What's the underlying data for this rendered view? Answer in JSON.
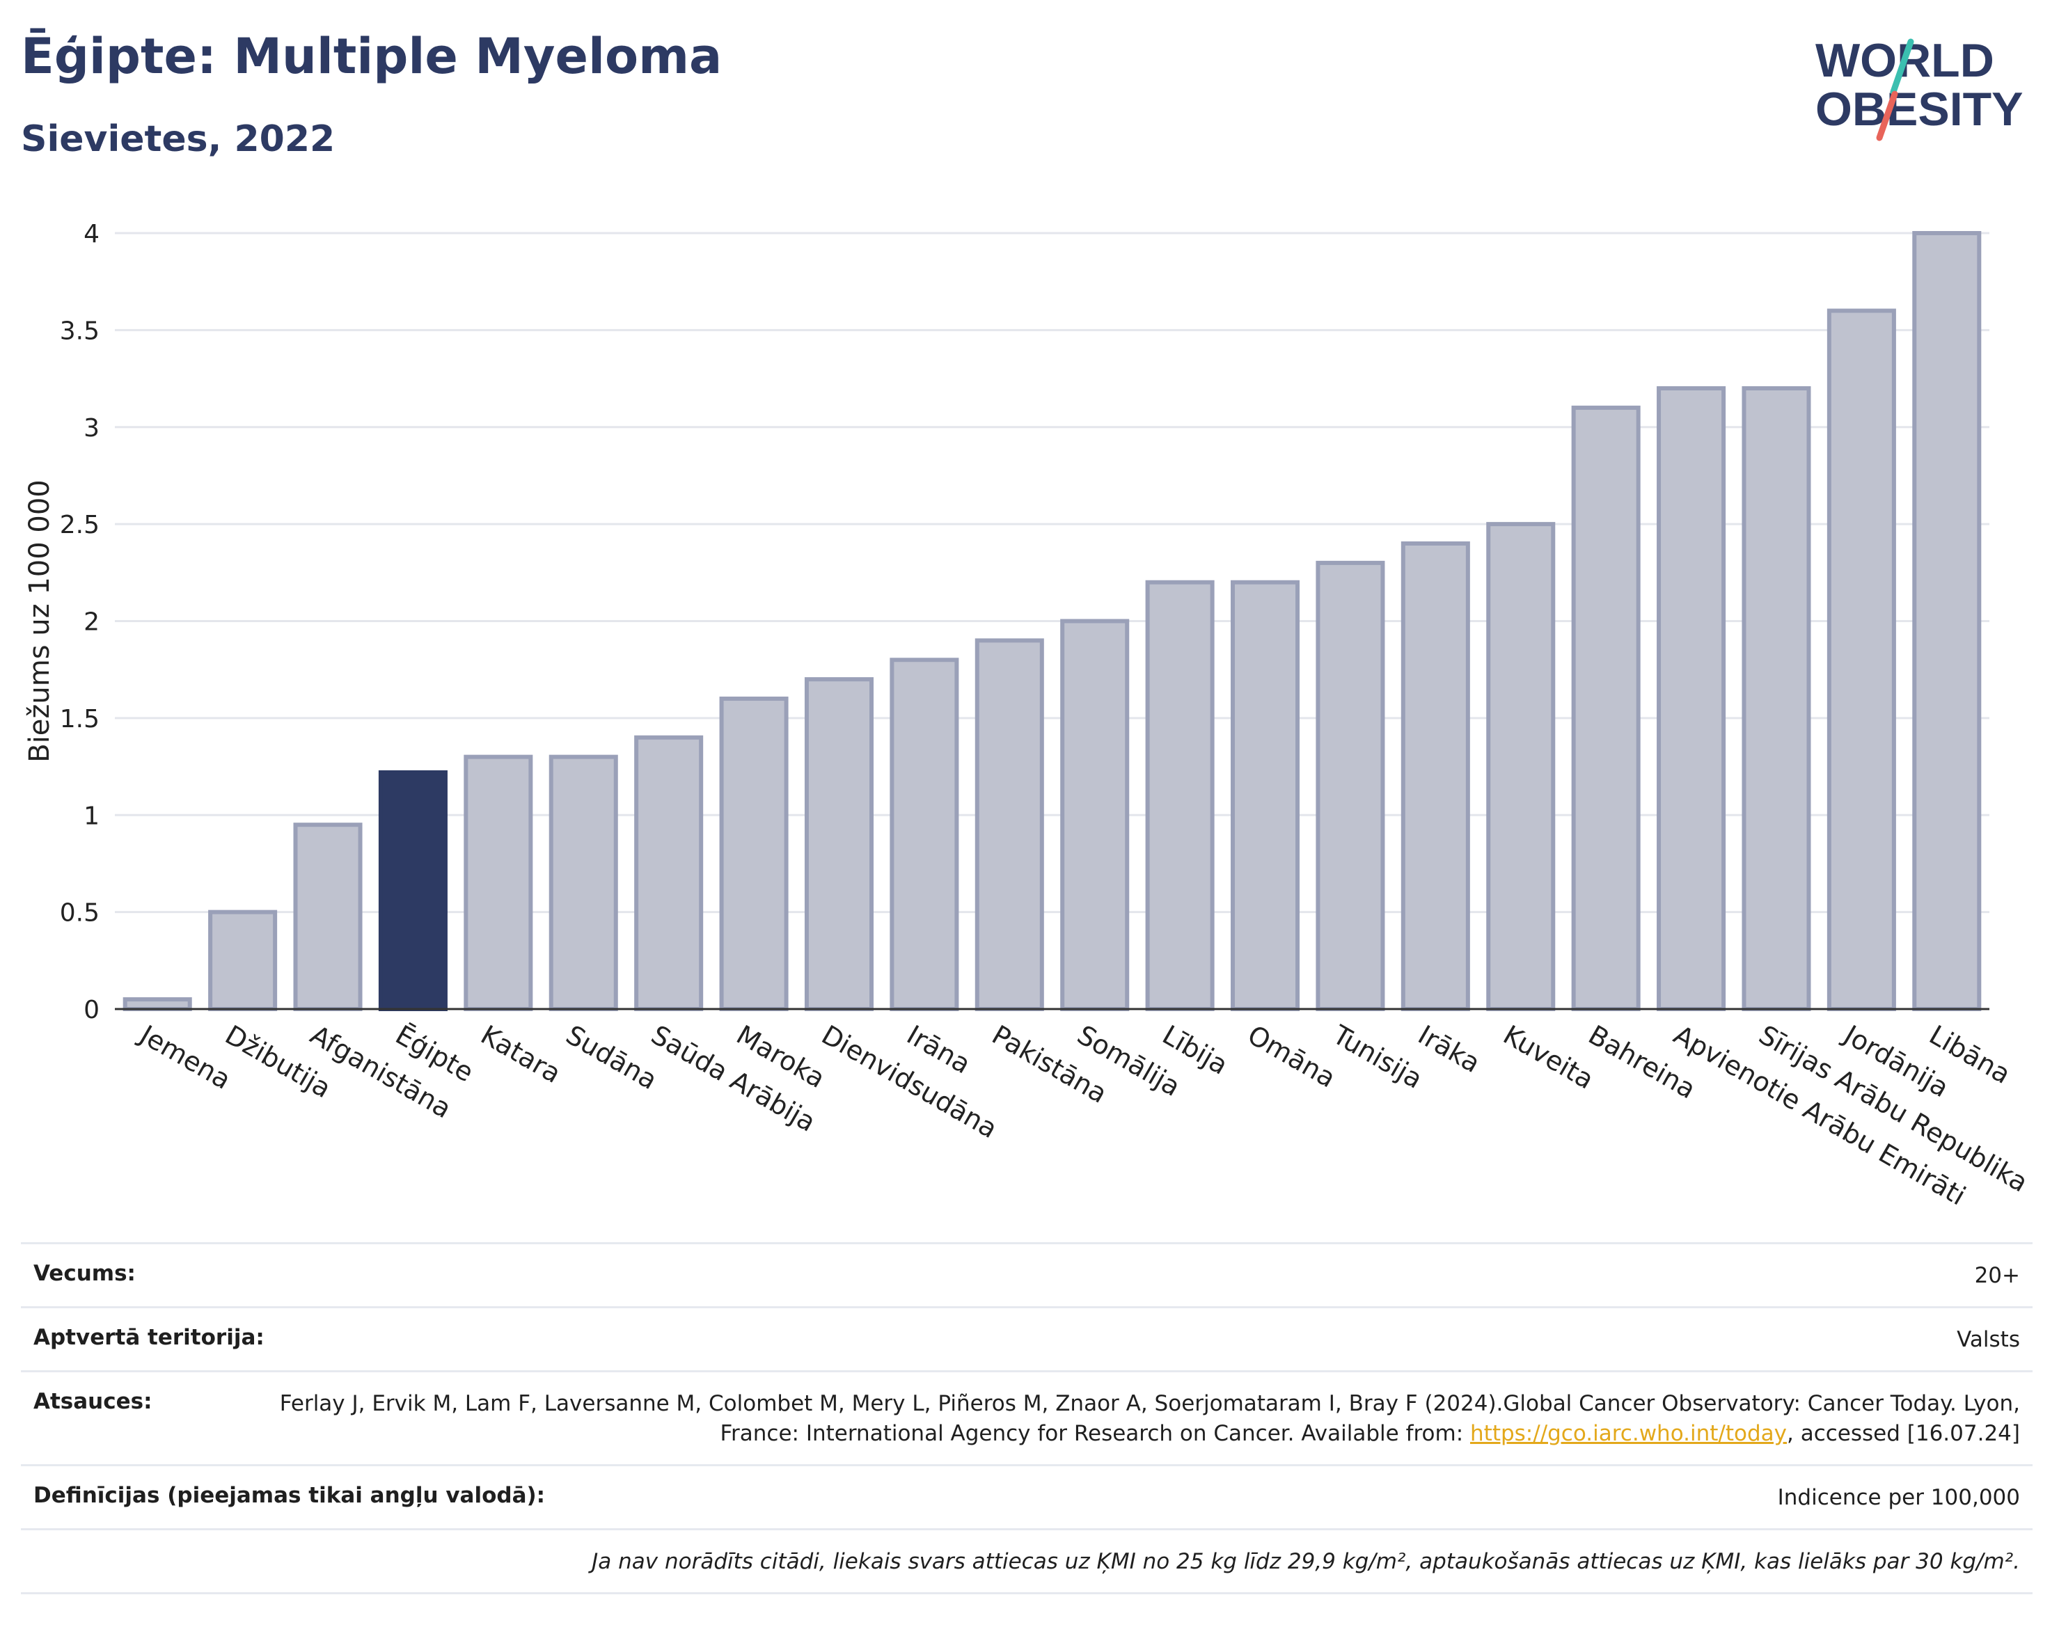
{
  "header": {
    "title": "Ēģipte: Multiple Myeloma",
    "subtitle": "Sievietes, 2022"
  },
  "logo": {
    "line1": "WORLD",
    "line2": "OBESITY",
    "brand_color": "#2d3a63",
    "accent_colors": [
      "#3bbfb0",
      "#e8645a"
    ]
  },
  "chart_data": {
    "type": "bar",
    "ylabel": "Biežums uz 100 000",
    "xlabel": "",
    "ylim": [
      0,
      4
    ],
    "yticks": [
      0,
      0.5,
      1,
      1.5,
      2,
      2.5,
      3,
      3.5,
      4
    ],
    "ytick_labels": [
      "0",
      "0.5",
      "1",
      "1.5",
      "2",
      "2.5",
      "3",
      "3.5",
      "4"
    ],
    "grid": true,
    "highlight_category": "Ēģipte",
    "colors": {
      "bar": "#bfc2cf",
      "bar_edge": "#9aa0b8",
      "highlight": "#2d3a63"
    },
    "categories": [
      "Jemena",
      "Džibutija",
      "Afganistāna",
      "Ēģipte",
      "Katara",
      "Sudāna",
      "Saūda Arābija",
      "Maroka",
      "Dienvidsudāna",
      "Irāna",
      "Pakistāna",
      "Somālija",
      "Lībija",
      "Omāna",
      "Tunisija",
      "Irāka",
      "Kuveita",
      "Bahreina",
      "Apvienotie Arābu Emirāti",
      "Sīrijas Arābu Republika",
      "Jordānija",
      "Libāna"
    ],
    "values": [
      0.05,
      0.5,
      0.95,
      1.22,
      1.3,
      1.3,
      1.4,
      1.6,
      1.7,
      1.8,
      1.9,
      2.0,
      2.2,
      2.2,
      2.3,
      2.4,
      2.5,
      3.1,
      3.2,
      3.2,
      3.6,
      4.0
    ]
  },
  "meta": {
    "rows": [
      {
        "label": "Vecums:",
        "value": "20+"
      },
      {
        "label": "Aptvertā teritorija:",
        "value": "Valsts"
      },
      {
        "label": "Atsauces:",
        "value_before": "Ferlay J, Ervik M, Lam F, Laversanne M, Colombet M, Mery L, Piñeros M, Znaor A, Soerjomataram I, Bray F (2024).Global Cancer Observatory: Cancer Today. Lyon, France: International Agency for Research on Cancer. Available from: ",
        "link": "https://gco.iarc.who.int/today",
        "value_after": ", accessed [16.07.24]"
      },
      {
        "label": "Definīcijas (pieejamas tikai angļu valodā):",
        "value": "Indicence per 100,000"
      },
      {
        "label": "",
        "value": "Ja nav norādīts citādi, liekais svars attiecas uz ĶMI no 25 kg līdz 29,9 kg/m², aptaukošanās attiecas uz ĶMI, kas lielāks par 30 kg/m²."
      }
    ]
  }
}
